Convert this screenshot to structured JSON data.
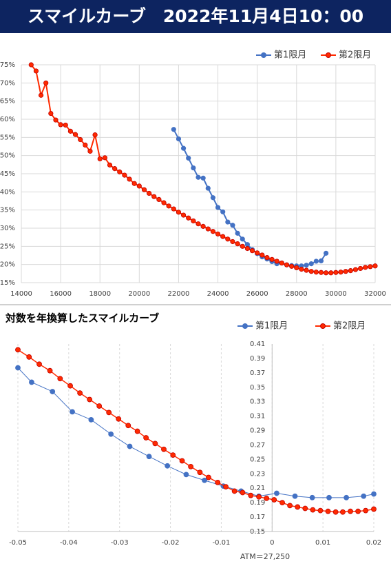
{
  "chart_data": [
    {
      "type": "line",
      "title": "スマイルカーブ　2022年11月4日10：00",
      "xlim": [
        14000,
        32000
      ],
      "xticks": [
        14000,
        16000,
        18000,
        20000,
        22000,
        24000,
        26000,
        28000,
        30000,
        32000
      ],
      "ylim": [
        15,
        75
      ],
      "yticks": [
        {
          "value": 15,
          "label": "15%"
        },
        {
          "value": 20,
          "label": "20%"
        },
        {
          "value": 25,
          "label": "25%"
        },
        {
          "value": 30,
          "label": "30%"
        },
        {
          "value": 35,
          "label": "35%"
        },
        {
          "value": 40,
          "label": "40%"
        },
        {
          "value": 45,
          "label": "45%"
        },
        {
          "value": 50,
          "label": "50%"
        },
        {
          "value": 55,
          "label": "55%"
        },
        {
          "value": 60,
          "label": "60%"
        },
        {
          "value": 65,
          "label": "65%"
        },
        {
          "value": 70,
          "label": "70%"
        },
        {
          "value": 75,
          "label": "75%"
        }
      ],
      "xgrid": true,
      "ygrid": true,
      "grid_style": "solid",
      "y_axis_position": "left",
      "legend": "top-right",
      "series": [
        {
          "name": "第1限月",
          "color": "#4472c4",
          "edge_color": "#4472c4",
          "line_width": 2,
          "x": [
            21750,
            22000,
            22250,
            22500,
            22750,
            23000,
            23250,
            23500,
            23750,
            24000,
            24250,
            24500,
            24750,
            25000,
            25250,
            25500,
            25750,
            26000,
            26250,
            26500,
            26750,
            27000,
            27250,
            27500,
            27750,
            28000,
            28250,
            28500,
            28750,
            29000,
            29250,
            29500
          ],
          "values": [
            57.2,
            54.6,
            52.0,
            49.3,
            46.6,
            44.0,
            43.8,
            41.0,
            38.4,
            35.7,
            34.5,
            31.7,
            30.8,
            28.6,
            27.0,
            25.5,
            24.1,
            23.0,
            22.1,
            21.5,
            20.8,
            20.2,
            20.4,
            19.9,
            19.7,
            19.6,
            19.6,
            19.8,
            20.2,
            20.9,
            21.0,
            23.1
          ]
        },
        {
          "name": "第2限月",
          "color": "#ff2a00",
          "edge_color": "#c00000",
          "line_width": 2,
          "x": [
            14500,
            14750,
            15000,
            15250,
            15500,
            15750,
            16000,
            16250,
            16500,
            16750,
            17000,
            17250,
            17500,
            17750,
            18000,
            18250,
            18500,
            18750,
            19000,
            19250,
            19500,
            19750,
            20000,
            20250,
            20500,
            20750,
            21000,
            21250,
            21500,
            21750,
            22000,
            22250,
            22500,
            22750,
            23000,
            23250,
            23500,
            23750,
            24000,
            24250,
            24500,
            24750,
            25000,
            25250,
            25500,
            25750,
            26000,
            26250,
            26500,
            26750,
            27000,
            27250,
            27500,
            27750,
            28000,
            28250,
            28500,
            28750,
            29000,
            29250,
            29500,
            29750,
            30000,
            30250,
            30500,
            30750,
            31000,
            31250,
            31500,
            31750,
            32000
          ],
          "values": [
            75,
            73.3,
            66.6,
            70.0,
            61.6,
            59.8,
            58.5,
            58.4,
            56.7,
            55.8,
            54.4,
            52.9,
            51.2,
            55.7,
            49.1,
            49.4,
            47.4,
            46.4,
            45.5,
            44.6,
            43.5,
            42.3,
            41.6,
            40.6,
            39.6,
            38.7,
            37.9,
            37.0,
            36.1,
            35.3,
            34.4,
            33.6,
            32.8,
            32.0,
            31.2,
            30.5,
            29.8,
            29.1,
            28.4,
            27.7,
            27.0,
            26.3,
            25.7,
            25.0,
            24.4,
            23.8,
            23.2,
            22.6,
            21.9,
            21.4,
            20.9,
            20.4,
            19.9,
            19.5,
            19.1,
            18.7,
            18.4,
            18.1,
            17.9,
            17.8,
            17.7,
            17.7,
            17.8,
            17.9,
            18.1,
            18.3,
            18.6,
            18.9,
            19.2,
            19.4,
            19.6
          ]
        }
      ]
    },
    {
      "type": "line",
      "title": "対数を年換算したスマイルカーブ",
      "annotation": "ATM＝27,250",
      "xlim": [
        -0.05,
        0.02
      ],
      "xticks": [
        -0.05,
        -0.04,
        -0.03,
        -0.02,
        -0.01,
        0,
        0.01,
        0.02
      ],
      "ylim": [
        0.15,
        0.41
      ],
      "yticks": [
        0.15,
        0.17,
        0.19,
        0.21,
        0.23,
        0.25,
        0.27,
        0.29,
        0.31,
        0.33,
        0.35,
        0.37,
        0.39,
        0.41
      ],
      "xgrid": true,
      "ygrid": false,
      "grid_style": "dashed",
      "y_axis_position": "zero",
      "legend": "top-right",
      "series": [
        {
          "name": "第1限月",
          "color": "#4472c4",
          "edge_color": "#4472c4",
          "line_width": 1,
          "x": [
            -0.05,
            -0.0473,
            -0.0432,
            -0.0393,
            -0.0356,
            -0.0317,
            -0.028,
            -0.0242,
            -0.0206,
            -0.0169,
            -0.0133,
            -0.0096,
            -0.0061,
            -0.0026,
            0.0009,
            0.0045,
            0.0079,
            0.0112,
            0.0146,
            0.018,
            0.02
          ],
          "values": [
            0.377,
            0.357,
            0.344,
            0.316,
            0.305,
            0.285,
            0.268,
            0.254,
            0.241,
            0.229,
            0.221,
            0.213,
            0.206,
            0.199,
            0.203,
            0.199,
            0.197,
            0.197,
            0.197,
            0.199,
            0.202
          ]
        },
        {
          "name": "第2限月",
          "color": "#ff2a00",
          "edge_color": "#c00000",
          "line_width": 1.5,
          "x": [
            -0.05,
            -0.0478,
            -0.0458,
            -0.0437,
            -0.0417,
            -0.0397,
            -0.0378,
            -0.0359,
            -0.034,
            -0.0321,
            -0.0302,
            -0.0283,
            -0.0265,
            -0.0248,
            -0.023,
            -0.0213,
            -0.0195,
            -0.0177,
            -0.016,
            -0.0142,
            -0.0125,
            -0.0107,
            -0.0091,
            -0.0074,
            -0.0058,
            -0.0042,
            -0.0026,
            -0.0011,
            0.0004,
            0.002,
            0.0035,
            0.005,
            0.0065,
            0.008,
            0.0095,
            0.011,
            0.0125,
            0.0139,
            0.0154,
            0.0169,
            0.0184,
            0.02
          ],
          "values": [
            0.402,
            0.392,
            0.382,
            0.373,
            0.362,
            0.352,
            0.342,
            0.333,
            0.324,
            0.315,
            0.306,
            0.297,
            0.289,
            0.28,
            0.272,
            0.264,
            0.256,
            0.248,
            0.24,
            0.232,
            0.225,
            0.218,
            0.212,
            0.206,
            0.204,
            0.2,
            0.198,
            0.196,
            0.194,
            0.19,
            0.186,
            0.184,
            0.182,
            0.18,
            0.179,
            0.178,
            0.177,
            0.177,
            0.178,
            0.178,
            0.179,
            0.181
          ]
        }
      ]
    }
  ]
}
